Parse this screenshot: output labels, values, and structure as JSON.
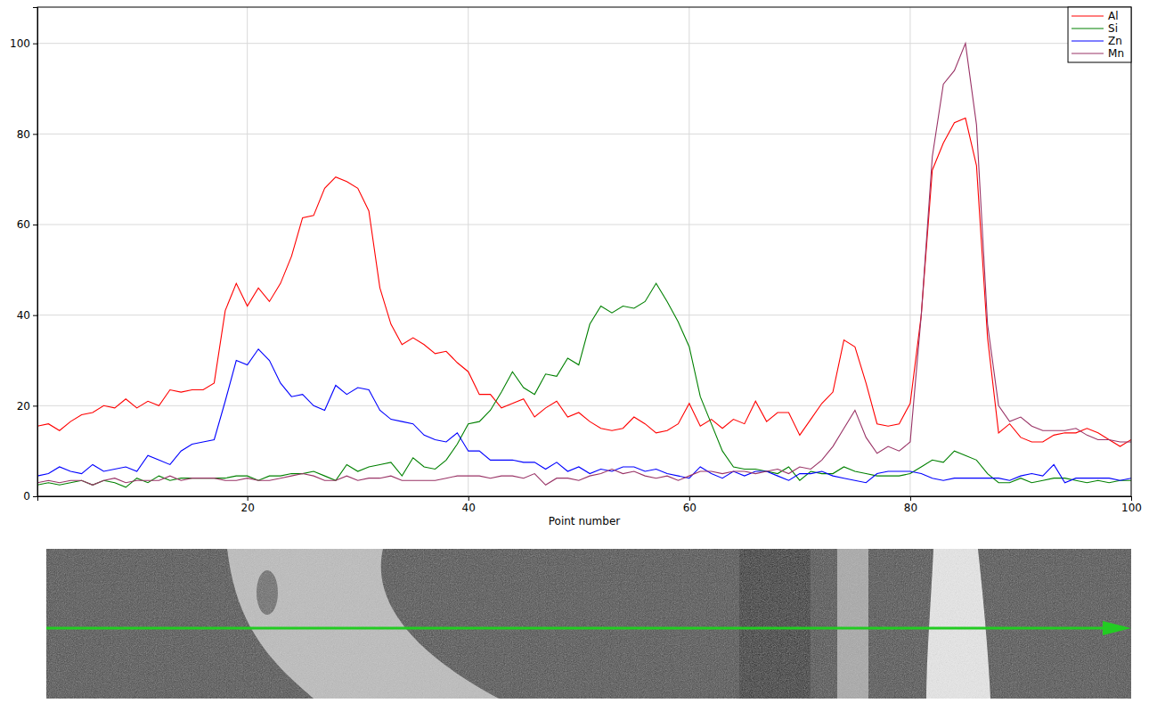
{
  "chart_data": {
    "type": "line",
    "x_label": "Point number",
    "x": [
      1,
      2,
      3,
      4,
      5,
      6,
      7,
      8,
      9,
      10,
      11,
      12,
      13,
      14,
      15,
      16,
      17,
      18,
      19,
      20,
      21,
      22,
      23,
      24,
      25,
      26,
      27,
      28,
      29,
      30,
      31,
      32,
      33,
      34,
      35,
      36,
      37,
      38,
      39,
      40,
      41,
      42,
      43,
      44,
      45,
      46,
      47,
      48,
      49,
      50,
      51,
      52,
      53,
      54,
      55,
      56,
      57,
      58,
      59,
      60,
      61,
      62,
      63,
      64,
      65,
      66,
      67,
      68,
      69,
      70,
      71,
      72,
      73,
      74,
      75,
      76,
      77,
      78,
      79,
      80,
      81,
      82,
      83,
      84,
      85,
      86,
      87,
      88,
      89,
      90,
      91,
      92,
      93,
      94,
      95,
      96,
      97,
      98,
      99,
      100
    ],
    "xlim": [
      1,
      100
    ],
    "xticks": [
      20,
      40,
      60,
      80,
      100
    ],
    "ylim": [
      0,
      108
    ],
    "yticks": [
      0,
      20,
      40,
      60,
      80,
      100
    ],
    "grid": true,
    "legend": "top-right",
    "series": [
      {
        "name": "Al",
        "color": "#ff0000",
        "values": [
          15.5,
          16,
          14.5,
          16.5,
          18,
          18.5,
          20,
          19.5,
          21.5,
          19.5,
          21,
          20,
          23.5,
          23,
          23.5,
          23.5,
          25,
          41,
          47,
          42,
          46,
          43,
          47,
          53,
          61.5,
          62,
          68,
          70.5,
          69.5,
          68,
          63,
          46,
          38,
          33.5,
          35,
          33.5,
          31.5,
          32,
          29.5,
          27.5,
          22.5,
          22.5,
          19.5,
          20.5,
          21.5,
          17.5,
          19.5,
          21,
          17.5,
          18.5,
          16.5,
          15,
          14.5,
          15,
          17.5,
          16,
          14,
          14.5,
          16,
          20.5,
          15.5,
          17,
          15,
          17,
          16,
          21,
          16.5,
          18.5,
          18.5,
          13.5,
          17,
          20.5,
          23,
          34.5,
          33,
          25,
          16,
          15.5,
          16,
          20.5,
          40,
          72,
          78,
          82.5,
          83.5,
          73,
          35,
          14,
          16,
          13,
          12,
          12,
          13.5,
          14,
          14,
          15,
          14,
          12.5,
          11,
          12.5
        ]
      },
      {
        "name": "Si",
        "color": "#008000",
        "values": [
          2.5,
          3,
          2.5,
          3,
          3.5,
          2.5,
          3.5,
          3,
          2,
          4,
          3,
          4.5,
          3.5,
          4,
          4,
          4,
          4,
          4,
          4.5,
          4.5,
          3.5,
          4.5,
          4.5,
          5,
          5,
          5.5,
          4.5,
          3.5,
          7,
          5.5,
          6.5,
          7,
          7.5,
          4.5,
          8.5,
          6.5,
          6,
          8,
          11.5,
          16,
          16.5,
          19,
          23,
          27.5,
          24,
          22.5,
          27,
          26.5,
          30.5,
          29,
          38,
          42,
          40.5,
          42,
          41.5,
          43,
          47,
          43,
          38.5,
          33,
          22,
          16,
          10,
          6.5,
          6,
          6,
          5.5,
          5,
          6.5,
          3.5,
          5.5,
          5,
          5,
          6.5,
          5.5,
          5,
          4.5,
          4.5,
          4.5,
          5,
          6.5,
          8,
          7.5,
          10,
          9,
          8,
          5,
          3,
          3,
          4,
          3,
          3.5,
          4,
          4,
          3.5,
          3,
          3.5,
          3,
          3.5,
          3.5
        ]
      },
      {
        "name": "Zn",
        "color": "#0000ff",
        "values": [
          4.5,
          5,
          6.5,
          5.5,
          5,
          7,
          5.5,
          6,
          6.5,
          5.5,
          9,
          8,
          7,
          10,
          11.5,
          12,
          12.5,
          21,
          30,
          29,
          32.5,
          30,
          25,
          22,
          22.5,
          20,
          19,
          24.5,
          22.5,
          24,
          23.5,
          19,
          17,
          16.5,
          16,
          13.5,
          12.5,
          12,
          14,
          10,
          10,
          8,
          8,
          8,
          7.5,
          7.5,
          6,
          7.5,
          5.5,
          6.5,
          5,
          6,
          5.5,
          6.5,
          6.5,
          5.5,
          6,
          5,
          4.5,
          4,
          6.5,
          5,
          4,
          5.5,
          4.5,
          5.5,
          5.5,
          4.5,
          3.5,
          5,
          5,
          5.5,
          4.5,
          4,
          3.5,
          3,
          5,
          5.5,
          5.5,
          5.5,
          5,
          4,
          3.5,
          4,
          4,
          4,
          4,
          4,
          3.5,
          4.5,
          5,
          4.5,
          7,
          3,
          4,
          4,
          4,
          4,
          3.5,
          4
        ]
      },
      {
        "name": "Mn",
        "color": "#993366",
        "values": [
          3,
          3.5,
          3,
          3.5,
          3.5,
          2.5,
          3.5,
          4,
          3,
          3.5,
          3.5,
          3.5,
          4.5,
          3.5,
          4,
          4,
          4,
          3.5,
          3.5,
          4,
          3.5,
          3.5,
          4,
          4.5,
          5,
          4.5,
          3.5,
          3.5,
          4.5,
          3.5,
          4,
          4,
          4.5,
          3.5,
          3.5,
          3.5,
          3.5,
          4,
          4.5,
          4.5,
          4.5,
          4,
          4.5,
          4.5,
          4,
          5,
          2.5,
          4,
          4,
          3.5,
          4.5,
          5,
          6,
          5,
          5.5,
          4.5,
          4,
          4.5,
          3.5,
          4.5,
          5.5,
          5.5,
          5,
          5.5,
          5.5,
          5,
          5.5,
          6,
          5,
          6.5,
          6,
          8,
          11,
          15,
          19,
          13,
          9.5,
          11,
          10,
          12,
          40,
          75,
          91,
          94,
          100,
          82,
          38,
          20,
          16.5,
          17.5,
          15.5,
          14.5,
          14.5,
          14.5,
          15,
          13.5,
          12.5,
          12.5,
          12,
          12
        ]
      }
    ]
  }
}
